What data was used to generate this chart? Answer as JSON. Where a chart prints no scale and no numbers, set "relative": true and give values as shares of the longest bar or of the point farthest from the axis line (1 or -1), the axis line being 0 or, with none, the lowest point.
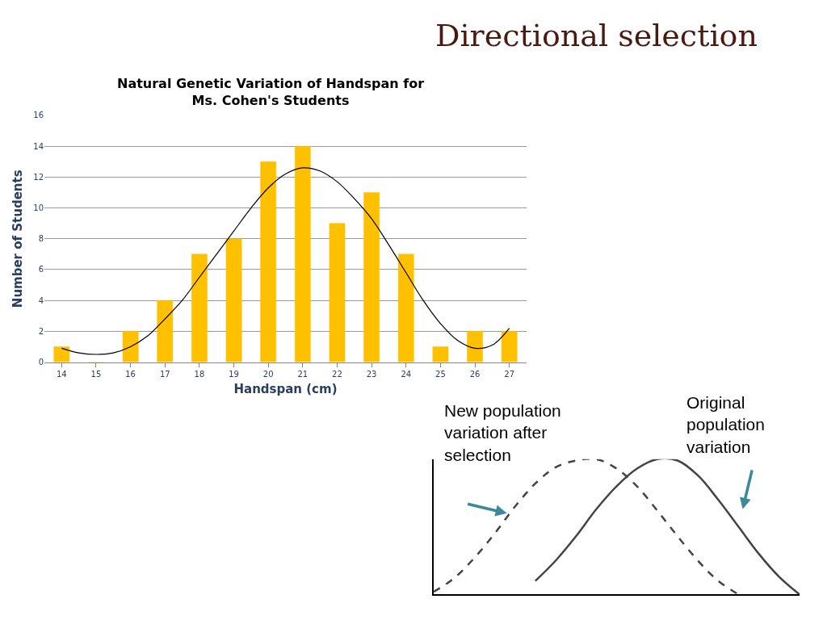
{
  "chart_data": [
    {
      "type": "bar",
      "title": "Natural Genetic Variation of Handspan for Ms. Cohen's Students",
      "xlabel": "Handspan (cm)",
      "ylabel": "Number of Students",
      "x": [
        14,
        15,
        16,
        17,
        18,
        19,
        20,
        21,
        22,
        23,
        24,
        25,
        26,
        27
      ],
      "series": [
        {
          "color": "#ffc000",
          "values": [
            1,
            0,
            2,
            4,
            7,
            8,
            13,
            14,
            9,
            11,
            7,
            1,
            2,
            2
          ]
        },
        {
          "type": "line",
          "color": "#000000",
          "x": [
            14,
            14.5,
            15,
            15.5,
            16,
            16.5,
            17,
            17.5,
            18,
            18.5,
            19,
            19.5,
            20,
            20.5,
            21,
            21.5,
            22,
            22.5,
            23,
            23.5,
            24,
            24.5,
            25,
            25.5,
            26,
            26.5,
            27
          ],
          "values": [
            0.9,
            0.6,
            0.5,
            0.6,
            1.0,
            1.7,
            2.8,
            4.0,
            5.5,
            7.0,
            8.5,
            10.0,
            11.3,
            12.2,
            12.6,
            12.4,
            11.7,
            10.6,
            9.3,
            7.6,
            5.8,
            4.0,
            2.5,
            1.4,
            0.9,
            1.1,
            2.2
          ]
        }
      ],
      "xlim": [
        13.5,
        27.5
      ],
      "xticks": [
        14,
        15,
        16,
        17,
        18,
        19,
        20,
        21,
        22,
        23,
        24,
        25,
        26,
        27
      ],
      "ylim": [
        0,
        16
      ],
      "yticks": [
        0,
        2,
        4,
        6,
        8,
        10,
        12,
        14,
        16
      ],
      "grid": "y",
      "legend": false,
      "annotations": [
        "Directional selection"
      ]
    },
    {
      "type": "line",
      "relative": true,
      "legend": false,
      "categories": [
        null,
        null,
        null,
        null,
        null,
        null,
        null,
        null,
        null,
        null,
        null,
        null,
        null,
        null,
        null,
        null,
        null,
        null,
        null
      ],
      "series": [
        {
          "name": "New population variation after selection",
          "color": "#444444",
          "line_style": "dashed",
          "values": [
            0.02,
            0.12,
            0.27,
            0.45,
            0.65,
            0.82,
            0.94,
            0.99,
            1.0,
            0.93,
            0.8,
            0.62,
            0.43,
            0.25,
            0.1,
            0.0,
            null,
            null,
            null
          ]
        },
        {
          "name": "Original population variation",
          "color": "#444444",
          "line_style": "solid",
          "values": [
            null,
            null,
            null,
            null,
            null,
            0.1,
            0.25,
            0.43,
            0.63,
            0.8,
            0.93,
            1.0,
            0.99,
            0.88,
            0.7,
            0.5,
            0.3,
            0.13,
            0.0
          ]
        }
      ]
    }
  ]
}
